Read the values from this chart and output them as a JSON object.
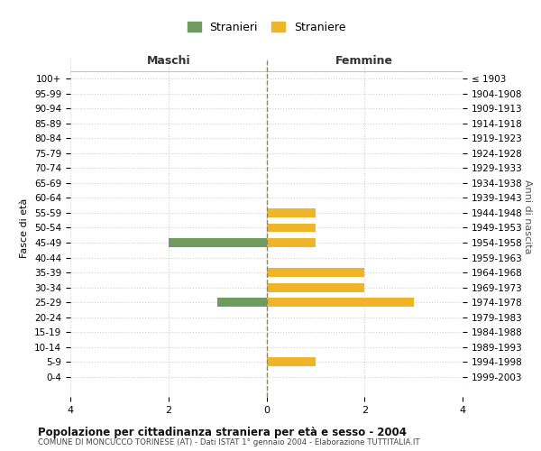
{
  "age_groups": [
    "100+",
    "95-99",
    "90-94",
    "85-89",
    "80-84",
    "75-79",
    "70-74",
    "65-69",
    "60-64",
    "55-59",
    "50-54",
    "45-49",
    "40-44",
    "35-39",
    "30-34",
    "25-29",
    "20-24",
    "15-19",
    "10-14",
    "5-9",
    "0-4"
  ],
  "birth_years": [
    "≤ 1903",
    "1904-1908",
    "1909-1913",
    "1914-1918",
    "1919-1923",
    "1924-1928",
    "1929-1933",
    "1934-1938",
    "1939-1943",
    "1944-1948",
    "1949-1953",
    "1954-1958",
    "1959-1963",
    "1964-1968",
    "1969-1973",
    "1974-1978",
    "1979-1983",
    "1984-1988",
    "1989-1993",
    "1994-1998",
    "1999-2003"
  ],
  "maschi": [
    0,
    0,
    0,
    0,
    0,
    0,
    0,
    0,
    0,
    0,
    0,
    2,
    0,
    0,
    0,
    1,
    0,
    0,
    0,
    0,
    0
  ],
  "femmine": [
    0,
    0,
    0,
    0,
    0,
    0,
    0,
    0,
    0,
    1,
    1,
    1,
    0,
    2,
    2,
    3,
    0,
    0,
    0,
    1,
    0
  ],
  "color_maschi": "#6e9b5e",
  "color_femmine": "#f0b429",
  "title": "Popolazione per cittadinanza straniera per età e sesso - 2004",
  "subtitle": "COMUNE DI MONCUCCO TORINESE (AT) - Dati ISTAT 1° gennaio 2004 - Elaborazione TUTTITALIA.IT",
  "xlabel_left": "Maschi",
  "xlabel_right": "Femmine",
  "ylabel_left": "Fasce di età",
  "ylabel_right": "Anni di nascita",
  "legend_maschi": "Stranieri",
  "legend_femmine": "Straniere",
  "xlim": 4,
  "background_color": "#ffffff",
  "grid_color": "#d0d0d0",
  "center_line_color": "#888866"
}
